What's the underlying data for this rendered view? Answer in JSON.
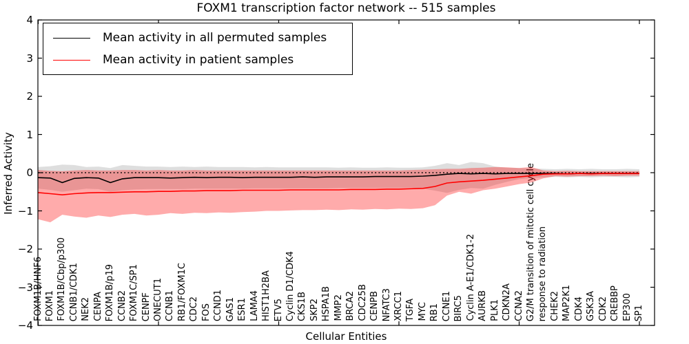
{
  "figure": {
    "title": "FOXM1 transcription factor network -- 515 samples",
    "xlabel": "Cellular Entities",
    "ylabel": "Inferred Activity"
  },
  "legend": {
    "items": [
      {
        "label": "Mean activity in all permuted samples",
        "color": "#000000"
      },
      {
        "label": "Mean activity in patient samples",
        "color": "#ff0000"
      }
    ]
  },
  "chart_data": {
    "type": "line",
    "title": "FOXM1 transcription factor network -- 515 samples",
    "xlabel": "Cellular Entities",
    "ylabel": "Inferred Activity",
    "ylim": [
      -4,
      4
    ],
    "yticks": [
      -4,
      -3,
      -2,
      -1,
      0,
      1,
      2,
      3,
      4
    ],
    "grid": false,
    "zero_line_style": "dotted",
    "legend_position": "upper left",
    "colors": {
      "permuted": "#000000",
      "patient": "#ff0000",
      "permuted_band": "rgba(0,0,0,0.13)",
      "patient_band": "rgba(255,0,0,0.33)"
    },
    "categories": [
      "FOXM1B/HNF6",
      "FOXM1",
      "FOXM1B/Cbp/p300",
      "CCNB1/CDK1",
      "NEK2",
      "CENPA",
      "FOXM1B/p19",
      "CCNB2",
      "FOXM1C/SP1",
      "CENPF",
      "ONECUT1",
      "CCNB1",
      "RB1/FOXM1C",
      "CDC2",
      "FOS",
      "CCND1",
      "GAS1",
      "ESR1",
      "LAMA4",
      "HIST1H2BA",
      "ETV5",
      "Cyclin D1/CDK4",
      "CKS1B",
      "SKP2",
      "HSPA1B",
      "MMP2",
      "BRCA2",
      "CDC25B",
      "CENPB",
      "NFATC3",
      "XRCC1",
      "TGFA",
      "MYC",
      "RB1",
      "CCNE1",
      "BIRC5",
      "Cyclin A-E1/CDK1-2",
      "AURKB",
      "PLK1",
      "CDKN2A",
      "CCNA2",
      "G2/M transition of mitotic cell cycle",
      "response to radiation",
      "CHEK2",
      "MAP2K1",
      "CDK4",
      "GSK3A",
      "CDK2",
      "CREBBP",
      "EP300",
      "SP1"
    ],
    "series": [
      {
        "name": "Mean activity in all permuted samples",
        "color": "#000000",
        "values": [
          -0.13,
          -0.14,
          -0.26,
          -0.15,
          -0.13,
          -0.14,
          -0.26,
          -0.16,
          -0.13,
          -0.13,
          -0.13,
          -0.14,
          -0.13,
          -0.12,
          -0.13,
          -0.12,
          -0.12,
          -0.13,
          -0.12,
          -0.12,
          -0.12,
          -0.12,
          -0.11,
          -0.12,
          -0.11,
          -0.11,
          -0.11,
          -0.11,
          -0.1,
          -0.1,
          -0.1,
          -0.1,
          -0.09,
          -0.07,
          -0.04,
          -0.02,
          -0.03,
          -0.02,
          -0.03,
          -0.02,
          -0.02,
          -0.02,
          -0.02,
          -0.02,
          -0.03,
          -0.02,
          -0.02,
          -0.02,
          -0.02,
          -0.02,
          -0.02
        ]
      },
      {
        "name": "Mean activity in patient samples",
        "color": "#ff0000",
        "values": [
          -0.52,
          -0.55,
          -0.58,
          -0.55,
          -0.53,
          -0.52,
          -0.52,
          -0.51,
          -0.5,
          -0.5,
          -0.49,
          -0.49,
          -0.48,
          -0.48,
          -0.47,
          -0.47,
          -0.47,
          -0.46,
          -0.46,
          -0.46,
          -0.46,
          -0.45,
          -0.45,
          -0.45,
          -0.45,
          -0.45,
          -0.44,
          -0.44,
          -0.44,
          -0.43,
          -0.43,
          -0.42,
          -0.41,
          -0.36,
          -0.27,
          -0.24,
          -0.22,
          -0.2,
          -0.17,
          -0.14,
          -0.11,
          -0.08,
          -0.04,
          -0.03,
          -0.03,
          -0.02,
          -0.03,
          -0.02,
          -0.02,
          -0.02,
          -0.02
        ]
      }
    ],
    "bands": [
      {
        "name": "permuted-range",
        "color": "rgba(0,0,0,0.13)",
        "hi": [
          0.15,
          0.17,
          0.21,
          0.2,
          0.15,
          0.16,
          0.12,
          0.2,
          0.18,
          0.16,
          0.16,
          0.15,
          0.16,
          0.15,
          0.16,
          0.15,
          0.15,
          0.15,
          0.14,
          0.15,
          0.14,
          0.14,
          0.14,
          0.14,
          0.14,
          0.13,
          0.14,
          0.13,
          0.13,
          0.14,
          0.13,
          0.13,
          0.14,
          0.18,
          0.25,
          0.2,
          0.28,
          0.25,
          0.16,
          0.13,
          0.12,
          0.11,
          0.1,
          0.09,
          0.1,
          0.09,
          0.1,
          0.09,
          0.09,
          0.1,
          0.09
        ],
        "lo": [
          -0.42,
          -0.45,
          -0.5,
          -0.46,
          -0.42,
          -0.43,
          -0.5,
          -0.46,
          -0.44,
          -0.43,
          -0.43,
          -0.43,
          -0.43,
          -0.42,
          -0.42,
          -0.42,
          -0.42,
          -0.42,
          -0.41,
          -0.41,
          -0.41,
          -0.41,
          -0.41,
          -0.41,
          -0.41,
          -0.4,
          -0.4,
          -0.4,
          -0.4,
          -0.4,
          -0.4,
          -0.39,
          -0.42,
          -0.47,
          -0.53,
          -0.45,
          -0.4,
          -0.42,
          -0.32,
          -0.24,
          -0.17,
          -0.14,
          -0.12,
          -0.11,
          -0.12,
          -0.11,
          -0.12,
          -0.11,
          -0.11,
          -0.12,
          -0.11
        ]
      },
      {
        "name": "patient-range",
        "color": "rgba(255,0,0,0.33)",
        "hi": [
          0.07,
          0.05,
          0.04,
          0.06,
          0.07,
          0.06,
          0.06,
          0.07,
          0.07,
          0.06,
          0.07,
          0.06,
          0.06,
          0.07,
          0.06,
          0.06,
          0.06,
          0.06,
          0.06,
          0.06,
          0.06,
          0.06,
          0.06,
          0.06,
          0.06,
          0.06,
          0.06,
          0.06,
          0.06,
          0.06,
          0.06,
          0.07,
          0.08,
          0.09,
          0.1,
          0.1,
          0.12,
          0.13,
          0.15,
          0.14,
          0.12,
          0.15,
          0.06,
          0.04,
          0.05,
          0.04,
          0.04,
          0.04,
          0.04,
          0.04,
          0.04
        ],
        "lo": [
          -1.22,
          -1.3,
          -1.1,
          -1.15,
          -1.18,
          -1.12,
          -1.16,
          -1.1,
          -1.08,
          -1.12,
          -1.1,
          -1.06,
          -1.08,
          -1.05,
          -1.06,
          -1.04,
          -1.05,
          -1.03,
          -1.02,
          -1.0,
          -1.0,
          -0.99,
          -0.98,
          -0.98,
          -0.97,
          -0.98,
          -0.96,
          -0.97,
          -0.95,
          -0.96,
          -0.94,
          -0.95,
          -0.93,
          -0.85,
          -0.6,
          -0.5,
          -0.55,
          -0.46,
          -0.42,
          -0.36,
          -0.3,
          -0.26,
          -0.15,
          -0.09,
          -0.1,
          -0.09,
          -0.09,
          -0.08,
          -0.09,
          -0.08,
          -0.08
        ]
      }
    ]
  }
}
